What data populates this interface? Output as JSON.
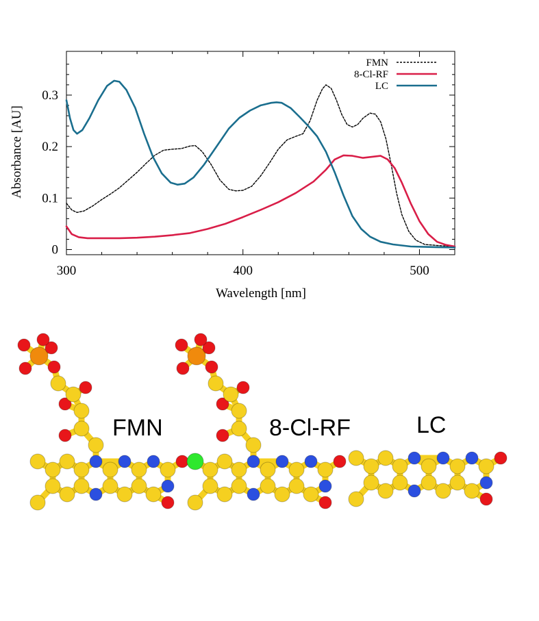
{
  "chart_data": {
    "type": "line",
    "xlabel": "Wavelength [nm]",
    "ylabel": "Absorbance [AU]",
    "xlim": [
      300,
      520
    ],
    "ylim": [
      -0.01,
      0.385
    ],
    "xticks": [
      300,
      400,
      500
    ],
    "yticks": [
      0,
      0.1,
      0.2,
      0.3
    ],
    "ytick_labels": [
      "0",
      "0.1",
      "0.2",
      "0.3"
    ],
    "legend_position": "top-right",
    "grid": false,
    "series": [
      {
        "name": "FMN",
        "color": "#000000",
        "dash": "dashed",
        "points": [
          [
            300,
            0.09
          ],
          [
            303,
            0.077
          ],
          [
            306,
            0.072
          ],
          [
            310,
            0.075
          ],
          [
            315,
            0.085
          ],
          [
            320,
            0.097
          ],
          [
            325,
            0.108
          ],
          [
            330,
            0.12
          ],
          [
            335,
            0.135
          ],
          [
            340,
            0.15
          ],
          [
            345,
            0.167
          ],
          [
            350,
            0.183
          ],
          [
            355,
            0.193
          ],
          [
            360,
            0.195
          ],
          [
            365,
            0.196
          ],
          [
            370,
            0.201
          ],
          [
            373,
            0.202
          ],
          [
            377,
            0.19
          ],
          [
            382,
            0.165
          ],
          [
            387,
            0.135
          ],
          [
            392,
            0.117
          ],
          [
            396,
            0.114
          ],
          [
            400,
            0.115
          ],
          [
            405,
            0.123
          ],
          [
            410,
            0.143
          ],
          [
            415,
            0.168
          ],
          [
            420,
            0.195
          ],
          [
            425,
            0.213
          ],
          [
            430,
            0.22
          ],
          [
            434,
            0.225
          ],
          [
            438,
            0.25
          ],
          [
            442,
            0.29
          ],
          [
            445,
            0.312
          ],
          [
            447,
            0.32
          ],
          [
            450,
            0.313
          ],
          [
            453,
            0.29
          ],
          [
            456,
            0.262
          ],
          [
            459,
            0.243
          ],
          [
            462,
            0.238
          ],
          [
            465,
            0.243
          ],
          [
            468,
            0.255
          ],
          [
            472,
            0.265
          ],
          [
            475,
            0.263
          ],
          [
            478,
            0.248
          ],
          [
            481,
            0.215
          ],
          [
            484,
            0.165
          ],
          [
            487,
            0.11
          ],
          [
            490,
            0.068
          ],
          [
            494,
            0.035
          ],
          [
            498,
            0.018
          ],
          [
            503,
            0.01
          ],
          [
            510,
            0.008
          ],
          [
            520,
            0.006
          ]
        ]
      },
      {
        "name": "8-Cl-RF",
        "color": "#d91e48",
        "dash": "solid",
        "points": [
          [
            300,
            0.045
          ],
          [
            303,
            0.03
          ],
          [
            307,
            0.024
          ],
          [
            312,
            0.022
          ],
          [
            320,
            0.022
          ],
          [
            330,
            0.022
          ],
          [
            340,
            0.023
          ],
          [
            350,
            0.025
          ],
          [
            360,
            0.028
          ],
          [
            370,
            0.032
          ],
          [
            380,
            0.04
          ],
          [
            390,
            0.05
          ],
          [
            400,
            0.063
          ],
          [
            410,
            0.077
          ],
          [
            420,
            0.092
          ],
          [
            430,
            0.11
          ],
          [
            440,
            0.132
          ],
          [
            447,
            0.155
          ],
          [
            452,
            0.175
          ],
          [
            457,
            0.183
          ],
          [
            462,
            0.182
          ],
          [
            468,
            0.178
          ],
          [
            473,
            0.18
          ],
          [
            478,
            0.182
          ],
          [
            482,
            0.175
          ],
          [
            486,
            0.158
          ],
          [
            490,
            0.13
          ],
          [
            495,
            0.09
          ],
          [
            500,
            0.055
          ],
          [
            505,
            0.03
          ],
          [
            510,
            0.015
          ],
          [
            515,
            0.009
          ],
          [
            520,
            0.006
          ]
        ]
      },
      {
        "name": "LC",
        "color": "#1a6e8e",
        "dash": "solid",
        "points": [
          [
            300,
            0.29
          ],
          [
            302,
            0.255
          ],
          [
            304,
            0.232
          ],
          [
            306,
            0.225
          ],
          [
            309,
            0.232
          ],
          [
            313,
            0.255
          ],
          [
            318,
            0.29
          ],
          [
            323,
            0.318
          ],
          [
            327,
            0.328
          ],
          [
            330,
            0.326
          ],
          [
            334,
            0.31
          ],
          [
            339,
            0.275
          ],
          [
            344,
            0.225
          ],
          [
            349,
            0.18
          ],
          [
            354,
            0.148
          ],
          [
            359,
            0.13
          ],
          [
            363,
            0.126
          ],
          [
            367,
            0.128
          ],
          [
            372,
            0.14
          ],
          [
            378,
            0.165
          ],
          [
            385,
            0.2
          ],
          [
            392,
            0.235
          ],
          [
            398,
            0.256
          ],
          [
            404,
            0.27
          ],
          [
            410,
            0.28
          ],
          [
            416,
            0.285
          ],
          [
            419,
            0.286
          ],
          [
            422,
            0.285
          ],
          [
            427,
            0.275
          ],
          [
            432,
            0.258
          ],
          [
            437,
            0.24
          ],
          [
            442,
            0.22
          ],
          [
            447,
            0.19
          ],
          [
            452,
            0.15
          ],
          [
            457,
            0.105
          ],
          [
            462,
            0.065
          ],
          [
            467,
            0.04
          ],
          [
            472,
            0.025
          ],
          [
            478,
            0.015
          ],
          [
            485,
            0.01
          ],
          [
            495,
            0.006
          ],
          [
            505,
            0.005
          ],
          [
            520,
            0.004
          ]
        ]
      }
    ]
  },
  "molecules": [
    {
      "label": "FMN"
    },
    {
      "label": "8-Cl-RF"
    },
    {
      "label": "LC"
    }
  ],
  "atom_colors": {
    "carbon": "#f5d020",
    "nitrogen": "#2b4fe0",
    "oxygen": "#e8161a",
    "phosphorus": "#f08a0c",
    "chlorine": "#2ee82e"
  }
}
